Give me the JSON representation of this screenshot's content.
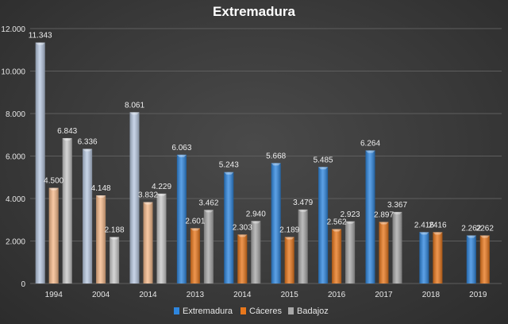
{
  "chart_data": {
    "type": "bar",
    "title": "Extremadura",
    "xlabel": "",
    "ylabel": "",
    "ylim": [
      0,
      12000
    ],
    "yticks": [
      0,
      2000,
      4000,
      6000,
      8000,
      10000,
      12000
    ],
    "ytick_labels": [
      "0",
      "2.000",
      "4.000",
      "6.000",
      "8.000",
      "10.000",
      "12.000"
    ],
    "grid": true,
    "legend_position": "bottom",
    "categories": [
      "1994",
      "2004",
      "2014",
      "2013",
      "2014",
      "2015",
      "2016",
      "2017",
      "2018",
      "2019"
    ],
    "faded_categories": [
      0,
      1,
      2
    ],
    "series": [
      {
        "name": "Extremadura",
        "color": "#2e86de",
        "faded_color": "#b8c8e0",
        "values": [
          11343,
          6336,
          8061,
          6063,
          5243,
          5668,
          5485,
          6264,
          2416,
          2262
        ],
        "labels": [
          "11.343",
          "6.336",
          "8.061",
          "6.063",
          "5.243",
          "5.668",
          "5.485",
          "6.264",
          "2.416",
          "2.262"
        ]
      },
      {
        "name": "Cáceres",
        "color": "#e8771c",
        "faded_color": "#f5b98a",
        "values": [
          4500,
          4148,
          3832,
          2601,
          2303,
          2189,
          2562,
          2897,
          2416,
          2262
        ],
        "labels": [
          "4.500",
          "4.148",
          "3.832",
          "2.601",
          "2.303",
          "2.189",
          "2.562",
          "2.897",
          "2416",
          "2262"
        ]
      },
      {
        "name": "Badajoz",
        "color": "#a8a8a8",
        "faded_color": "#c8c8c8",
        "values": [
          6843,
          2188,
          4229,
          3462,
          2940,
          3479,
          2923,
          3367,
          null,
          null
        ],
        "labels": [
          "6.843",
          "2.188",
          "4.229",
          "3.462",
          "2.940",
          "3.479",
          "2.923",
          "3.367",
          null,
          null
        ]
      }
    ]
  }
}
